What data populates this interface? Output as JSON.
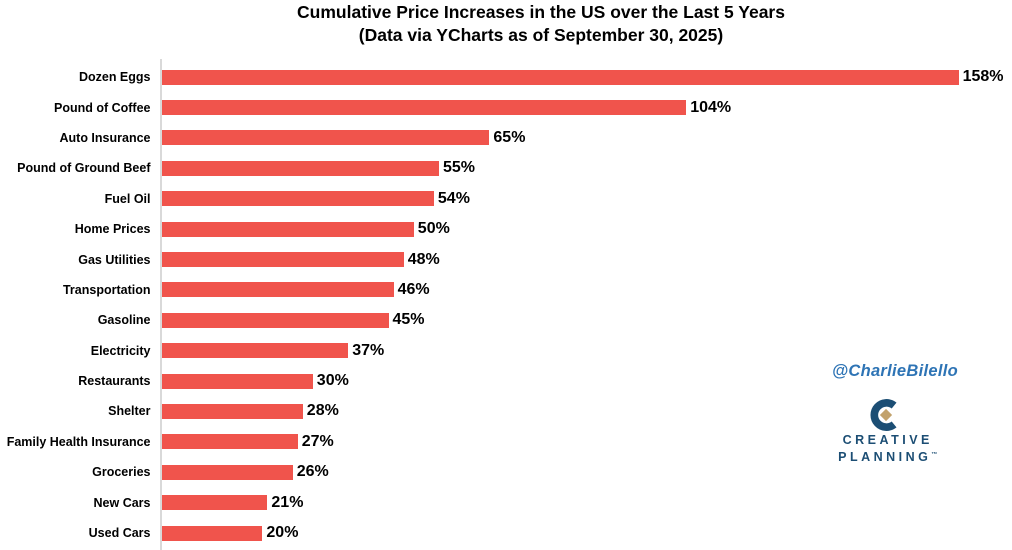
{
  "title": {
    "line1": "Cumulative Price Increases in the US over the Last 5 Years",
    "line2": "(Data via YCharts as of September 30, 2025)"
  },
  "watermark": {
    "handle": "@CharlieBilello"
  },
  "logo": {
    "icon": "creative-planning-monogram",
    "line1": "CREATIVE",
    "line2": "PLANNING",
    "trademark": "™"
  },
  "colors": {
    "bar": "#F0544C",
    "axis_line": "#D9D9D9",
    "text": "#000000",
    "watermark_blue": "#2E74B5",
    "logo_navy": "#1C4E74",
    "logo_gold": "#C2A26C"
  },
  "chart_data": {
    "type": "bar",
    "orientation": "horizontal",
    "title": "Cumulative Price Increases in the US over the Last 5 Years",
    "subtitle": "(Data via YCharts as of September 30, 2025)",
    "xlabel": "",
    "ylabel": "",
    "xlim": [
      0,
      168
    ],
    "grid": false,
    "legend": false,
    "value_suffix": "%",
    "categories": [
      "Dozen Eggs",
      "Pound of Coffee",
      "Auto Insurance",
      "Pound of Ground Beef",
      "Fuel Oil",
      "Home Prices",
      "Gas Utilities",
      "Transportation",
      "Gasoline",
      "Electricity",
      "Restaurants",
      "Shelter",
      "Family Health Insurance",
      "Groceries",
      "New Cars",
      "Used Cars"
    ],
    "values": [
      158,
      104,
      65,
      55,
      54,
      50,
      48,
      46,
      45,
      37,
      30,
      28,
      27,
      26,
      21,
      20
    ],
    "value_labels": [
      "158%",
      "104%",
      "65%",
      "55%",
      "54%",
      "50%",
      "48%",
      "46%",
      "45%",
      "37%",
      "30%",
      "28%",
      "27%",
      "26%",
      "21%",
      "20%"
    ]
  }
}
